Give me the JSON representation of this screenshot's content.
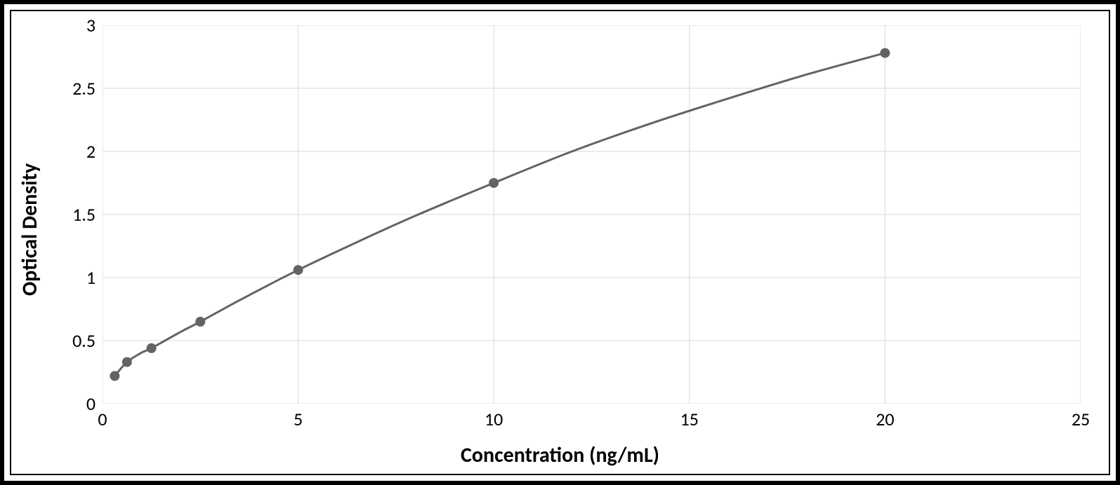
{
  "chart": {
    "type": "line",
    "xlabel": "Concentration (ng/mL)",
    "ylabel": "Optical Density",
    "xlim": [
      0,
      25
    ],
    "ylim": [
      0,
      3
    ],
    "xticks": [
      0,
      5,
      10,
      15,
      20,
      25
    ],
    "yticks": [
      0,
      0.5,
      1,
      1.5,
      2,
      2.5,
      3
    ],
    "points": [
      {
        "x": 0.312,
        "y": 0.22
      },
      {
        "x": 0.625,
        "y": 0.33
      },
      {
        "x": 1.25,
        "y": 0.44
      },
      {
        "x": 2.5,
        "y": 0.65
      },
      {
        "x": 5.0,
        "y": 1.06
      },
      {
        "x": 10.0,
        "y": 1.75
      },
      {
        "x": 20.0,
        "y": 2.78
      }
    ],
    "curve": [
      {
        "x": 0.312,
        "y": 0.22
      },
      {
        "x": 0.625,
        "y": 0.33
      },
      {
        "x": 1.0,
        "y": 0.405
      },
      {
        "x": 1.25,
        "y": 0.44
      },
      {
        "x": 2.0,
        "y": 0.57
      },
      {
        "x": 2.5,
        "y": 0.65
      },
      {
        "x": 3.5,
        "y": 0.82
      },
      {
        "x": 5.0,
        "y": 1.06
      },
      {
        "x": 6.5,
        "y": 1.28
      },
      {
        "x": 8.0,
        "y": 1.49
      },
      {
        "x": 10.0,
        "y": 1.75
      },
      {
        "x": 12.0,
        "y": 2.0
      },
      {
        "x": 14.0,
        "y": 2.22
      },
      {
        "x": 16.0,
        "y": 2.42
      },
      {
        "x": 18.0,
        "y": 2.61
      },
      {
        "x": 20.0,
        "y": 2.78
      }
    ],
    "style": {
      "background_color": "#ffffff",
      "frame_border_color": "#000000",
      "grid_color": "#d9d9d9",
      "grid_width": 1,
      "axis_line_color": "#d9d9d9",
      "line_color": "#636363",
      "line_width": 3,
      "marker_color": "#636363",
      "marker_radius": 7,
      "label_color": "#000000",
      "axis_title_fontsize": 30,
      "axis_title_fontweight": "700",
      "tick_fontsize": 26,
      "tick_fontweight": "400"
    }
  }
}
